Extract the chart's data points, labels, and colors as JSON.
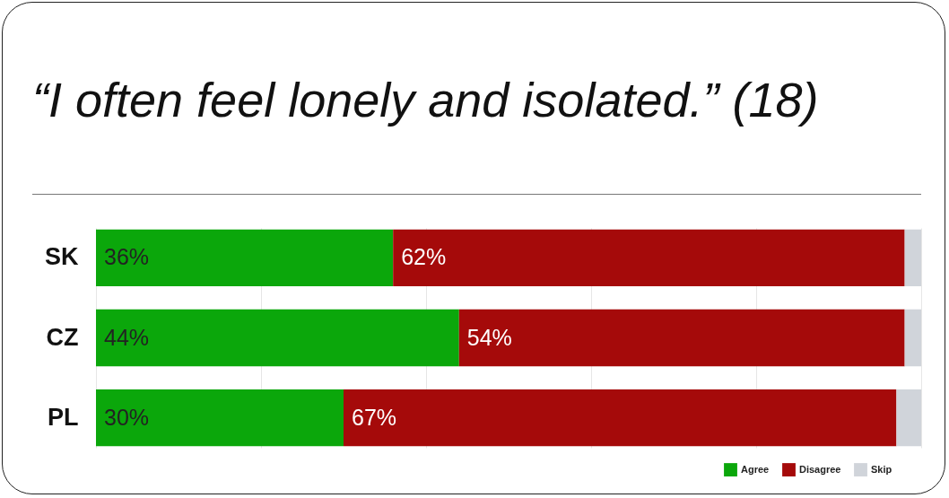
{
  "chart_data": {
    "type": "bar",
    "orientation": "horizontal",
    "stacked": true,
    "title": "“I often feel lonely and isolated.” (18)",
    "categories": [
      "SK",
      "CZ",
      "PL"
    ],
    "series": [
      {
        "name": "Agree",
        "color": "#0ba70b",
        "values": [
          36,
          44,
          30
        ],
        "value_labels": [
          "36%",
          "44%",
          "30%"
        ]
      },
      {
        "name": "Disagree",
        "color": "#a50a0a",
        "values": [
          62,
          54,
          67
        ],
        "value_labels": [
          "62%",
          "54%",
          "67%"
        ]
      },
      {
        "name": "Skip",
        "color": "#d0d4da",
        "values": [
          2,
          2,
          3
        ]
      }
    ],
    "xlim": [
      0,
      100
    ],
    "xticks": [
      {
        "value": 0,
        "label": null
      },
      {
        "value": 20,
        "label": null
      },
      {
        "value": 40,
        "label": null
      },
      {
        "value": 60,
        "label": null
      },
      {
        "value": 80,
        "label": null
      },
      {
        "value": 100,
        "label": null
      }
    ],
    "grid": "x",
    "tick_labels": "y",
    "legend": "bottom right"
  }
}
